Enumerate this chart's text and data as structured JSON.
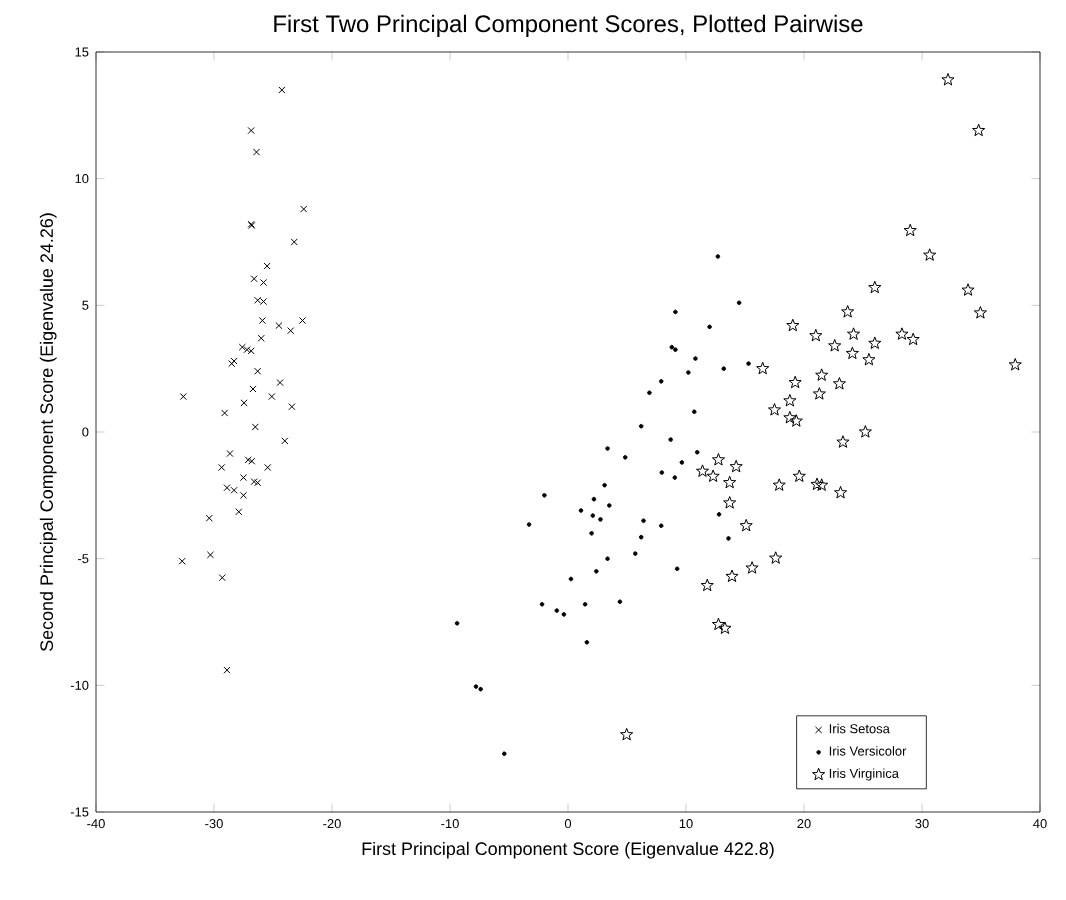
{
  "chart_data": {
    "type": "scatter",
    "title": "First Two Principal Component Scores, Plotted Pairwise",
    "xlabel": "First Principal Component Score (Eigenvalue 422.8)",
    "ylabel": "Second Principal Component Score (Eigenvalue 24.26)",
    "xlim": [
      -40,
      40
    ],
    "ylim": [
      -15,
      15
    ],
    "xticks": [
      -40,
      -30,
      -20,
      -10,
      0,
      10,
      20,
      30,
      40
    ],
    "yticks": [
      -15,
      -10,
      -5,
      0,
      5,
      10,
      15
    ],
    "grid": false,
    "legend": "bottom right",
    "series": [
      {
        "name": "Iris Setosa",
        "color": "#000000",
        "marker": "cross",
        "x": [
          -24.25,
          -26.85,
          -26.4,
          -22.4,
          -26.85,
          -26.8,
          -23.2,
          -25.5,
          -26.6,
          -25.8,
          -26.3,
          -25.8,
          -25.9,
          -24.5,
          -23.5,
          -22.5,
          -26.0,
          -27.6,
          -27.2,
          -26.85,
          -28.3,
          -28.5,
          -26.3,
          -24.4,
          -26.7,
          -25.1,
          -23.4,
          -32.6,
          -27.45,
          -29.1,
          -26.5,
          -24.0,
          -28.65,
          -27.1,
          -26.8,
          -29.35,
          -25.45,
          -27.5,
          -26.6,
          -26.3,
          -28.9,
          -28.3,
          -27.5,
          -27.9,
          -30.4,
          -30.3,
          -32.7,
          -29.3,
          -28.9
        ],
        "values": [
          13.5,
          11.9,
          11.05,
          8.8,
          8.2,
          8.15,
          7.5,
          6.55,
          6.05,
          5.9,
          5.2,
          5.15,
          4.4,
          4.2,
          4.0,
          4.4,
          3.7,
          3.35,
          3.25,
          3.2,
          2.8,
          2.7,
          2.4,
          1.95,
          1.7,
          1.4,
          1.0,
          1.4,
          1.15,
          0.75,
          0.2,
          -0.35,
          -0.85,
          -1.1,
          -1.15,
          -1.4,
          -1.4,
          -1.8,
          -1.96,
          -2.0,
          -2.2,
          -2.3,
          -2.5,
          -3.15,
          -3.4,
          -4.85,
          -5.1,
          -5.75,
          -9.4
        ]
      },
      {
        "name": "Iris Versicolor",
        "color": "#000000",
        "marker": "circle",
        "x": [
          12.7,
          14.5,
          9.1,
          12.0,
          8.8,
          9.1,
          10.8,
          15.3,
          13.2,
          10.2,
          7.9,
          6.9,
          10.7,
          6.2,
          8.7,
          3.35,
          10.95,
          4.85,
          9.65,
          7.95,
          9.05,
          3.1,
          -2.0,
          2.2,
          3.5,
          1.1,
          2.1,
          2.75,
          12.8,
          6.4,
          -3.3,
          2.0,
          6.2,
          7.9,
          13.6,
          5.7,
          3.35,
          2.4,
          9.25,
          0.25,
          -2.2,
          1.45,
          4.4,
          -0.95,
          -0.35,
          1.6,
          -9.4,
          -7.8,
          -7.4,
          -5.4
        ],
        "values": [
          6.93,
          5.1,
          4.74,
          4.15,
          3.35,
          3.25,
          2.9,
          2.7,
          2.5,
          2.35,
          2.0,
          1.55,
          0.8,
          0.23,
          -0.3,
          -0.65,
          -0.8,
          -1.0,
          -1.2,
          -1.6,
          -1.8,
          -2.1,
          -2.5,
          -2.65,
          -2.9,
          -3.1,
          -3.3,
          -3.45,
          -3.25,
          -3.5,
          -3.65,
          -4.0,
          -4.15,
          -3.7,
          -4.2,
          -4.8,
          -5.0,
          -5.5,
          -5.4,
          -5.8,
          -6.8,
          -6.8,
          -6.7,
          -7.05,
          -7.2,
          -8.3,
          -7.55,
          -10.05,
          -10.15,
          -12.7
        ]
      },
      {
        "name": "Iris Virginica",
        "color": "#000000",
        "marker": "star",
        "x": [
          32.2,
          34.8,
          29.0,
          30.65,
          26.0,
          33.9,
          34.95,
          23.7,
          19.05,
          21.0,
          24.2,
          22.6,
          26.0,
          28.3,
          29.25,
          24.1,
          25.5,
          37.9,
          16.5,
          21.5,
          19.25,
          23.0,
          21.3,
          18.8,
          17.5,
          18.8,
          19.35,
          25.2,
          23.3,
          12.75,
          14.25,
          11.4,
          12.3,
          13.7,
          17.9,
          19.6,
          21.1,
          21.5,
          23.1,
          13.7,
          15.1,
          17.6,
          15.6,
          13.9,
          11.8,
          12.75,
          13.3,
          4.97
        ],
        "values": [
          13.9,
          11.9,
          7.95,
          6.98,
          5.7,
          5.6,
          4.7,
          4.74,
          4.2,
          3.8,
          3.86,
          3.4,
          3.5,
          3.86,
          3.65,
          3.1,
          2.85,
          2.65,
          2.5,
          2.24,
          1.95,
          1.9,
          1.5,
          1.23,
          0.87,
          0.56,
          0.43,
          0.0,
          -0.4,
          -1.1,
          -1.37,
          -1.55,
          -1.75,
          -2.0,
          -2.1,
          -1.75,
          -2.07,
          -2.1,
          -2.4,
          -2.8,
          -3.7,
          -4.98,
          -5.37,
          -5.7,
          -6.06,
          -7.6,
          -7.75,
          -11.95
        ]
      }
    ]
  }
}
